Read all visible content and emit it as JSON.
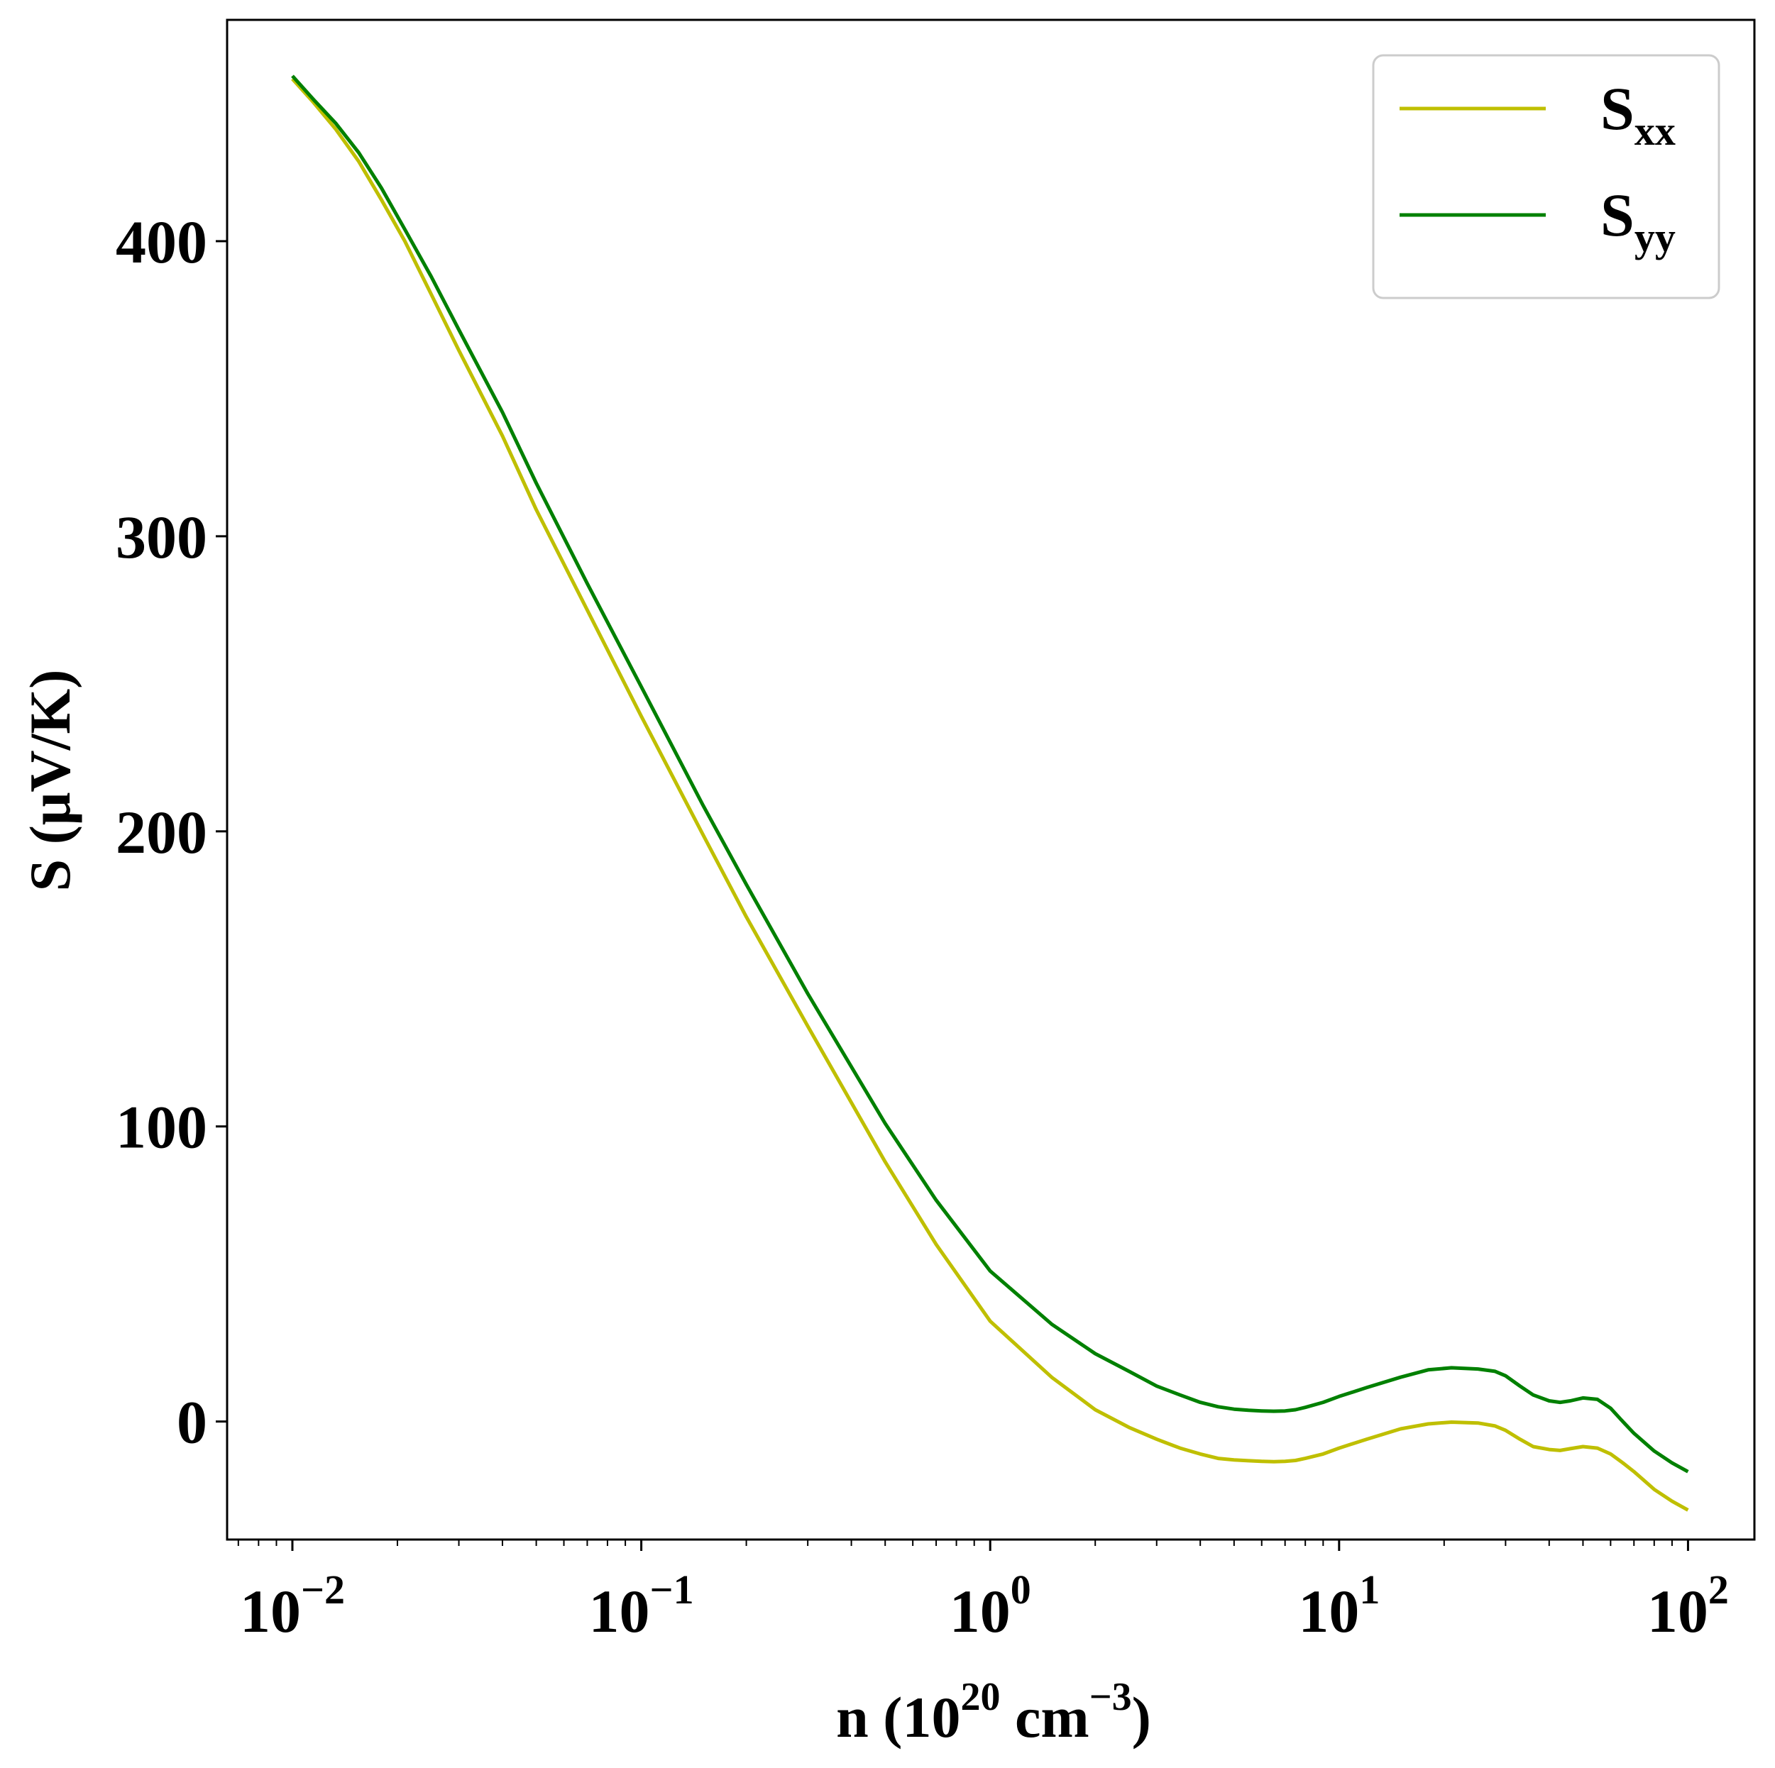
{
  "chart_data": {
    "type": "line",
    "xscale": "log",
    "xlim": [
      0.0065,
      155
    ],
    "ylim": [
      -40,
      475
    ],
    "xlabel": {
      "base": "n (10",
      "sup1": "20",
      "mid": " cm",
      "sup2": "−3",
      "end": ")"
    },
    "ylabel": "S (μV/K)",
    "xticks": [
      {
        "value": 0.01,
        "base": "10",
        "exp": "−2"
      },
      {
        "value": 0.1,
        "base": "10",
        "exp": "−1"
      },
      {
        "value": 1,
        "base": "10",
        "exp": "0"
      },
      {
        "value": 10,
        "base": "10",
        "exp": "1"
      },
      {
        "value": 100,
        "base": "10",
        "exp": "2"
      }
    ],
    "yticks": [
      {
        "value": 0,
        "label": "0"
      },
      {
        "value": 100,
        "label": "100"
      },
      {
        "value": 200,
        "label": "200"
      },
      {
        "value": 300,
        "label": "300"
      },
      {
        "value": 400,
        "label": "400"
      }
    ],
    "legend": "top-right",
    "grid": false,
    "series": [
      {
        "name": "S",
        "sub": "xx",
        "color": "#bfbf00",
        "x": [
          0.01,
          0.0115,
          0.0133,
          0.0155,
          0.018,
          0.021,
          0.025,
          0.03,
          0.04,
          0.05,
          0.07,
          0.1,
          0.15,
          0.2,
          0.3,
          0.5,
          0.7,
          1.0,
          1.5,
          2.0,
          2.5,
          3.0,
          3.5,
          4.0,
          4.5,
          5.0,
          5.5,
          6.0,
          6.5,
          7.0,
          7.5,
          8.0,
          9.0,
          10.0,
          12.0,
          15.0,
          18.0,
          21.0,
          25.0,
          28.0,
          30.0,
          33.0,
          36.0,
          40.0,
          43.0,
          46.0,
          50.0,
          55.0,
          60.0,
          65.0,
          70.0,
          80.0,
          90.0,
          100.0
        ],
        "y": [
          455,
          447,
          438,
          427,
          414,
          400,
          382,
          363,
          334,
          309,
          275,
          239,
          199,
          171,
          134,
          88,
          60,
          34,
          15,
          4,
          -2,
          -6,
          -9,
          -11,
          -12.5,
          -13,
          -13.3,
          -13.5,
          -13.6,
          -13.5,
          -13.2,
          -12.5,
          -11,
          -9,
          -6,
          -2.5,
          -0.8,
          -0.2,
          -0.5,
          -1.5,
          -3,
          -6,
          -8.5,
          -9.5,
          -9.8,
          -9.2,
          -8.5,
          -9,
          -11,
          -14,
          -17,
          -23,
          -27,
          -30
        ]
      },
      {
        "name": "S",
        "sub": "yy",
        "color": "#008000",
        "x": [
          0.01,
          0.0115,
          0.0133,
          0.0155,
          0.018,
          0.021,
          0.025,
          0.03,
          0.04,
          0.05,
          0.07,
          0.1,
          0.15,
          0.2,
          0.3,
          0.5,
          0.7,
          1.0,
          1.5,
          2.0,
          2.5,
          3.0,
          3.5,
          4.0,
          4.5,
          5.0,
          5.5,
          6.0,
          6.5,
          7.0,
          7.5,
          8.0,
          9.0,
          10.0,
          12.0,
          15.0,
          18.0,
          21.0,
          25.0,
          28.0,
          30.0,
          33.0,
          36.0,
          40.0,
          43.0,
          46.0,
          50.0,
          55.0,
          60.0,
          65.0,
          70.0,
          80.0,
          90.0,
          100.0
        ],
        "y": [
          456,
          448,
          440,
          430,
          418,
          404,
          388,
          370,
          342,
          318,
          284,
          249,
          209,
          182,
          145,
          101,
          75,
          51,
          33,
          23,
          17,
          12,
          9,
          6.5,
          5,
          4.2,
          3.8,
          3.6,
          3.5,
          3.6,
          4,
          4.8,
          6.5,
          8.5,
          11.5,
          15,
          17.5,
          18.2,
          17.8,
          17,
          15.5,
          12,
          9,
          7,
          6.5,
          7,
          8,
          7.5,
          4.5,
          0,
          -4,
          -10,
          -14,
          -17
        ]
      }
    ]
  }
}
